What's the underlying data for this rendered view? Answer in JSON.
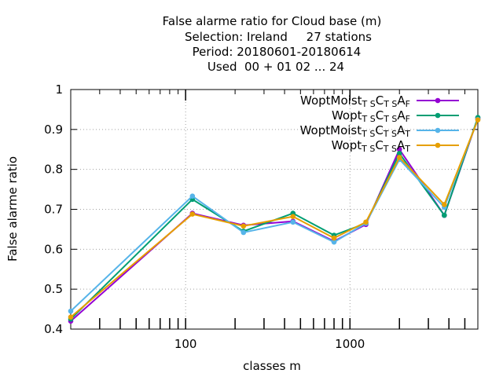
{
  "chart_data": {
    "type": "line",
    "title_lines": [
      "False alarme ratio  for Cloud base (m)",
      "Selection: Ireland     27 stations",
      "Period: 20180601-20180614",
      "Used  00 + 01 02 ... 24"
    ],
    "xlabel": "classes m",
    "ylabel": "False alarme ratio",
    "x_scale": "log",
    "xlim": [
      20,
      6000
    ],
    "ylim": [
      0.4,
      1.0
    ],
    "y_ticks": [
      "0.4",
      "0.5",
      "0.6",
      "0.7",
      "0.8",
      "0.9",
      "1"
    ],
    "x_tick_labels": [
      {
        "value": 100,
        "label": "100"
      },
      {
        "value": 1000,
        "label": "1000"
      }
    ],
    "grid": true,
    "legend_position": "top-right",
    "x": [
      20,
      110,
      225,
      450,
      800,
      1250,
      2000,
      3750,
      6000
    ],
    "series": [
      {
        "name": "WoptMoist",
        "sub1": "T S",
        "mid": "C",
        "sub2": "T S",
        "tail": "A",
        "sub3": "F",
        "color": "#9400d3",
        "values": [
          0.42,
          0.69,
          0.66,
          0.67,
          0.62,
          0.662,
          0.85,
          0.685,
          0.928
        ]
      },
      {
        "name": "Wopt",
        "sub1": "T S",
        "mid": "C",
        "sub2": "T S",
        "tail": "A",
        "sub3": "F",
        "color": "#009e73",
        "values": [
          0.425,
          0.725,
          0.645,
          0.69,
          0.635,
          0.665,
          0.84,
          0.685,
          0.93
        ]
      },
      {
        "name": "WoptMoist",
        "sub1": "T S",
        "mid": "C",
        "sub2": "T S",
        "tail": "A",
        "sub3": "T",
        "color": "#56b4e9",
        "values": [
          0.445,
          0.733,
          0.642,
          0.668,
          0.618,
          0.665,
          0.825,
          0.705,
          0.925
        ]
      },
      {
        "name": "Wopt",
        "sub1": "T S",
        "mid": "C",
        "sub2": "T S",
        "tail": "A",
        "sub3": "T",
        "color": "#e69f00",
        "values": [
          0.43,
          0.688,
          0.658,
          0.682,
          0.628,
          0.668,
          0.83,
          0.712,
          0.924
        ]
      }
    ]
  }
}
